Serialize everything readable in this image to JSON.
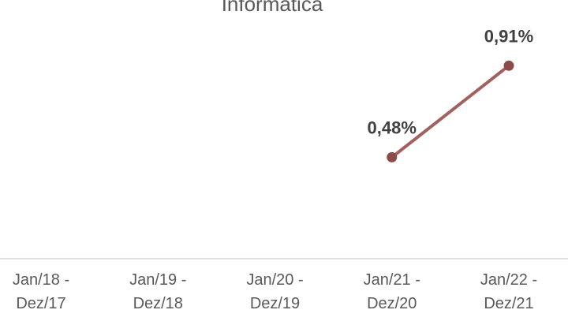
{
  "chart_data": {
    "type": "line",
    "title": "Informática",
    "categories": [
      "Jan/18 - Dez/17",
      "Jan/19 - Dez/18",
      "Jan/20 - Dez/19",
      "Jan/21 - Dez/20",
      "Jan/22 - Dez/21"
    ],
    "series": [
      {
        "name": "Informática",
        "color": "#a0615f",
        "values": [
          null,
          null,
          null,
          0.48,
          0.91
        ],
        "value_labels": [
          null,
          null,
          null,
          "0,48%",
          "0,91%"
        ]
      }
    ],
    "ylim": [
      0,
      1.2
    ]
  }
}
